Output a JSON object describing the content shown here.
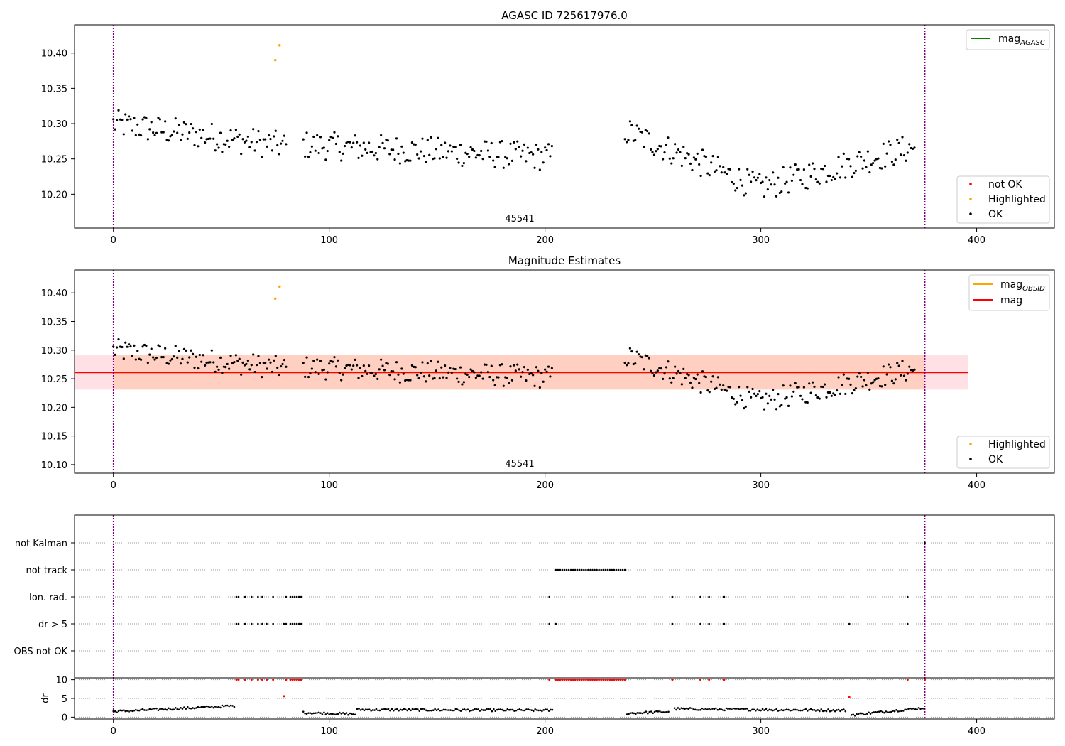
{
  "chart_data": [
    {
      "type": "scatter",
      "title": "AGASC ID 725617976.0",
      "annotation": "45541",
      "xlim": [
        -18,
        436
      ],
      "ylim": [
        10.152,
        10.44
      ],
      "xticks": [
        0,
        100,
        200,
        300,
        400
      ],
      "yticks": [
        10.2,
        10.25,
        10.3,
        10.35,
        10.4
      ],
      "ytick_labels": [
        "10.20",
        "10.25",
        "10.30",
        "10.35",
        "10.40"
      ],
      "vlines": [
        0,
        376
      ],
      "legend_lines": [
        {
          "name": "mag",
          "sub": "AGASC",
          "color": "#008000"
        }
      ],
      "legend_points": [
        {
          "name": "not OK",
          "color": "#ff0000"
        },
        {
          "name": "Highlighted",
          "color": "#ffa500"
        },
        {
          "name": "OK",
          "color": "#000000"
        }
      ],
      "highlighted": {
        "x": [
          75,
          77
        ],
        "y": [
          10.39,
          10.411
        ]
      },
      "series": [
        {
          "name": "OK",
          "seg": [
            0,
            80
          ],
          "base": 10.3,
          "slope": -0.0004,
          "noise": 0.02
        },
        {
          "name": "OK",
          "seg": [
            88,
            204
          ],
          "base": 10.27,
          "slope": -0.00015,
          "noise": 0.02
        },
        {
          "name": "OK",
          "seg": [
            237,
            300
          ],
          "base": 10.29,
          "slope": -0.0013,
          "noise": 0.02
        },
        {
          "name": "OK",
          "seg": [
            300,
            372
          ],
          "base": 10.21,
          "slope": 0.0008,
          "noise": 0.02
        }
      ]
    },
    {
      "type": "scatter",
      "title": "Magnitude Estimates",
      "annotation": "45541",
      "xlim": [
        -18,
        436
      ],
      "ylim": [
        10.085,
        10.44
      ],
      "xticks": [
        0,
        100,
        200,
        300,
        400
      ],
      "yticks": [
        10.1,
        10.15,
        10.2,
        10.25,
        10.3,
        10.35,
        10.4
      ],
      "ytick_labels": [
        "10.10",
        "10.15",
        "10.20",
        "10.25",
        "10.30",
        "10.35",
        "10.40"
      ],
      "vlines": [
        0,
        376
      ],
      "mag": 10.261,
      "mag_band": [
        10.231,
        10.291
      ],
      "mag_band_x": [
        -18,
        396
      ],
      "obsid_band_x": [
        0,
        376
      ],
      "legend_lines": [
        {
          "name": "mag",
          "sub": "OBSID",
          "color": "#ffa500"
        },
        {
          "name": "mag",
          "sub": "",
          "color": "#ff0000"
        }
      ],
      "legend_points": [
        {
          "name": "Highlighted",
          "color": "#ffa500"
        },
        {
          "name": "OK",
          "color": "#000000"
        }
      ],
      "highlighted": {
        "x": [
          75,
          77
        ],
        "y": [
          10.39,
          10.411
        ]
      }
    },
    {
      "type": "scatter",
      "xlim": [
        -18,
        436
      ],
      "xticks": [
        0,
        100,
        200,
        300,
        400
      ],
      "vlines": [
        0,
        376
      ],
      "flag_labels": [
        "not Kalman",
        "not track",
        "Ion. rad.",
        "dr > 5",
        "OBS not OK"
      ],
      "flag_points": {
        "not Kalman": [
          376
        ],
        "not track": [
          205,
          206,
          207,
          208,
          209,
          210,
          211,
          212,
          213,
          214,
          215,
          216,
          217,
          218,
          219,
          220,
          221,
          222,
          223,
          224,
          225,
          226,
          227,
          228,
          229,
          230,
          231,
          232,
          233,
          234,
          235,
          236,
          237
        ],
        "Ion. rad.": [
          57,
          58,
          61,
          64,
          67,
          69,
          74,
          80,
          82,
          83,
          84,
          85,
          86,
          87,
          202,
          259,
          272,
          276,
          283,
          368
        ],
        "dr > 5": [
          57,
          58,
          61,
          64,
          67,
          69,
          71,
          74,
          79,
          80,
          82,
          83,
          84,
          85,
          86,
          87,
          202,
          205,
          259,
          272,
          276,
          283,
          341,
          368
        ],
        "OBS not OK": []
      },
      "dr_label": "dr",
      "dr_yticks": [
        0,
        5,
        10
      ],
      "dr_ylim": [
        -0.5,
        10.5
      ],
      "dr_red_x": [
        57,
        58,
        61,
        64,
        67,
        69,
        71,
        74,
        79,
        80,
        82,
        83,
        84,
        85,
        86,
        87,
        202,
        205,
        206,
        207,
        208,
        209,
        210,
        211,
        212,
        213,
        214,
        215,
        216,
        217,
        218,
        219,
        220,
        221,
        222,
        223,
        224,
        225,
        226,
        227,
        228,
        229,
        230,
        231,
        232,
        233,
        234,
        235,
        236,
        237,
        259,
        272,
        276,
        283,
        341,
        368,
        376
      ]
    }
  ]
}
